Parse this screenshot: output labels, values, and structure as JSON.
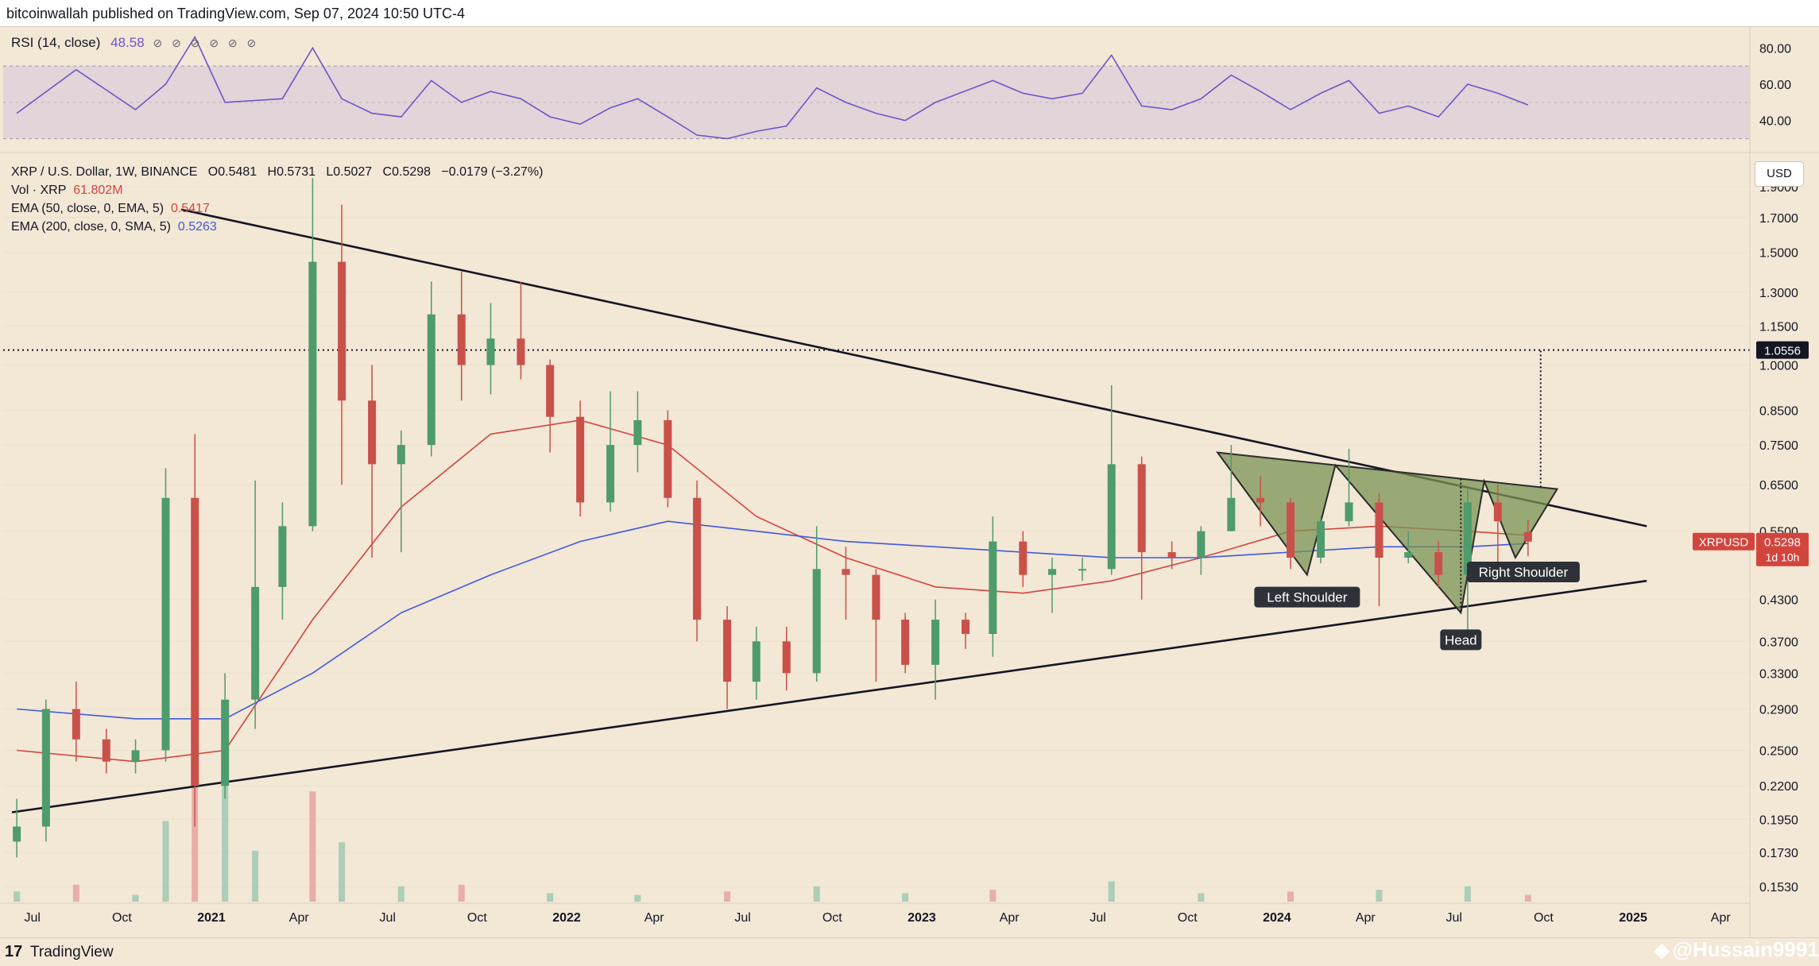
{
  "header": {
    "publisher": "bitcoinwallah published on TradingView.com, Sep 07, 2024 10:50 UTC-4"
  },
  "rsi": {
    "label": "RSI (14, close)",
    "value": "48.58",
    "icons": "⊘ ⊘ ⊘ ⊘ ⊘ ⊘",
    "scale": [
      "80.00",
      "60.00",
      "40.00"
    ]
  },
  "legend": {
    "symbol": "XRP / U.S. Dollar, 1W, BINANCE",
    "o_label": "O",
    "o": "0.5481",
    "h_label": "H",
    "h": "0.5731",
    "l_label": "L",
    "l": "0.5027",
    "c_label": "C",
    "c": "0.5298",
    "change": "−0.0179 (−3.27%)",
    "vol_label": "Vol · XRP",
    "vol": "61.802M",
    "ema50_label": "EMA (50, close, 0, EMA, 5)",
    "ema50": "0.5417",
    "ema200_label": "EMA (200, close, 0, SMA, 5)",
    "ema200": "0.5263"
  },
  "currency_button": "USD",
  "price_axis": [
    "1.9000",
    "1.7000",
    "1.5000",
    "1.3000",
    "1.1500",
    "1.0000",
    "0.8500",
    "0.7500",
    "0.6500",
    "0.5500",
    "0.4300",
    "0.3700",
    "0.3300",
    "0.2900",
    "0.2500",
    "0.2200",
    "0.1950",
    "0.1730",
    "0.1530"
  ],
  "time_axis": [
    "Jul",
    "Oct",
    "2021",
    "Apr",
    "Jul",
    "Oct",
    "2022",
    "Apr",
    "Jul",
    "Oct",
    "2023",
    "Apr",
    "Jul",
    "Oct",
    "2024",
    "Apr",
    "Jul",
    "Oct",
    "2025",
    "Apr"
  ],
  "tags": {
    "target": "1.0556",
    "symbol": "XRPUSD",
    "last": "0.5298",
    "countdown": "1d 10h"
  },
  "annotations": {
    "left_shoulder": "Left Shoulder",
    "head": "Head",
    "right_shoulder": "Right Shoulder"
  },
  "footer": {
    "logo": "17",
    "brand": "TradingView",
    "watermark": "@Hussain9991",
    "watermark_icon": "◈"
  },
  "colors": {
    "background": "#f3e7d6",
    "up_candle": "#4e9b6c",
    "down_candle": "#c9514a",
    "ema50": "#d2453d",
    "ema200": "#3f5ad8",
    "rsi_line": "#6f55c8",
    "pattern_fill": "#7a9454",
    "trendline": "#131722"
  },
  "chart_data": {
    "type": "candlestick",
    "title": "XRP / U.S. Dollar, 1W, BINANCE",
    "y_scale": "log",
    "ylim": [
      0.145,
      2.1
    ],
    "xlim": [
      "2020-06",
      "2025-05"
    ],
    "series": [
      {
        "name": "XRP / U.S. Dollar",
        "points": [
          [
            "2020-06",
            0.18,
            0.21,
            0.17,
            0.19
          ],
          [
            "2020-07",
            0.19,
            0.3,
            0.18,
            0.29
          ],
          [
            "2020-08",
            0.29,
            0.32,
            0.24,
            0.26
          ],
          [
            "2020-09",
            0.26,
            0.27,
            0.23,
            0.24
          ],
          [
            "2020-10",
            0.24,
            0.26,
            0.23,
            0.25
          ],
          [
            "2020-11",
            0.25,
            0.69,
            0.24,
            0.62
          ],
          [
            "2020-12",
            0.62,
            0.78,
            0.19,
            0.22
          ],
          [
            "2021-01",
            0.22,
            0.33,
            0.21,
            0.3
          ],
          [
            "2021-02",
            0.3,
            0.66,
            0.27,
            0.45
          ],
          [
            "2021-03",
            0.45,
            0.61,
            0.4,
            0.56
          ],
          [
            "2021-04",
            0.56,
            1.96,
            0.55,
            1.45
          ],
          [
            "2021-05",
            1.45,
            1.78,
            0.65,
            0.88
          ],
          [
            "2021-06",
            0.88,
            1.0,
            0.5,
            0.7
          ],
          [
            "2021-07",
            0.7,
            0.79,
            0.51,
            0.75
          ],
          [
            "2021-08",
            0.75,
            1.35,
            0.72,
            1.2
          ],
          [
            "2021-09",
            1.2,
            1.4,
            0.88,
            1.0
          ],
          [
            "2021-10",
            1.0,
            1.25,
            0.9,
            1.1
          ],
          [
            "2021-11",
            1.1,
            1.35,
            0.95,
            1.0
          ],
          [
            "2021-12",
            1.0,
            1.02,
            0.73,
            0.83
          ],
          [
            "2022-01",
            0.83,
            0.88,
            0.58,
            0.61
          ],
          [
            "2022-02",
            0.61,
            0.91,
            0.59,
            0.75
          ],
          [
            "2022-03",
            0.75,
            0.91,
            0.68,
            0.82
          ],
          [
            "2022-04",
            0.82,
            0.85,
            0.6,
            0.62
          ],
          [
            "2022-05",
            0.62,
            0.66,
            0.37,
            0.4
          ],
          [
            "2022-06",
            0.4,
            0.42,
            0.29,
            0.32
          ],
          [
            "2022-07",
            0.32,
            0.39,
            0.3,
            0.37
          ],
          [
            "2022-08",
            0.37,
            0.39,
            0.31,
            0.33
          ],
          [
            "2022-09",
            0.33,
            0.56,
            0.32,
            0.48
          ],
          [
            "2022-10",
            0.48,
            0.52,
            0.4,
            0.47
          ],
          [
            "2022-11",
            0.47,
            0.48,
            0.32,
            0.4
          ],
          [
            "2022-12",
            0.4,
            0.41,
            0.33,
            0.34
          ],
          [
            "2023-01",
            0.34,
            0.43,
            0.3,
            0.4
          ],
          [
            "2023-02",
            0.4,
            0.41,
            0.36,
            0.38
          ],
          [
            "2023-03",
            0.38,
            0.58,
            0.35,
            0.53
          ],
          [
            "2023-04",
            0.53,
            0.55,
            0.45,
            0.47
          ],
          [
            "2023-05",
            0.47,
            0.5,
            0.41,
            0.48
          ],
          [
            "2023-06",
            0.48,
            0.5,
            0.46,
            0.48
          ],
          [
            "2023-07",
            0.48,
            0.93,
            0.47,
            0.7
          ],
          [
            "2023-08",
            0.7,
            0.72,
            0.43,
            0.51
          ],
          [
            "2023-09",
            0.51,
            0.53,
            0.48,
            0.5
          ],
          [
            "2023-10",
            0.5,
            0.56,
            0.47,
            0.55
          ],
          [
            "2023-11",
            0.55,
            0.75,
            0.55,
            0.62
          ],
          [
            "2023-12",
            0.62,
            0.67,
            0.56,
            0.61
          ],
          [
            "2024-01",
            0.61,
            0.62,
            0.48,
            0.5
          ],
          [
            "2024-02",
            0.5,
            0.58,
            0.49,
            0.57
          ],
          [
            "2024-03",
            0.57,
            0.74,
            0.56,
            0.61
          ],
          [
            "2024-04",
            0.61,
            0.63,
            0.42,
            0.5
          ],
          [
            "2024-05",
            0.5,
            0.55,
            0.49,
            0.51
          ],
          [
            "2024-06",
            0.51,
            0.53,
            0.45,
            0.47
          ],
          [
            "2024-07",
            0.47,
            0.64,
            0.38,
            0.61
          ],
          [
            "2024-08",
            0.61,
            0.65,
            0.49,
            0.57
          ],
          [
            "2024-09",
            0.5481,
            0.5731,
            0.5027,
            0.5298
          ]
        ]
      },
      {
        "name": "EMA (50, close, 0, EMA, 5)",
        "points": [
          [
            "2020-06",
            0.25
          ],
          [
            "2020-10",
            0.24
          ],
          [
            "2021-01",
            0.25
          ],
          [
            "2021-04",
            0.4
          ],
          [
            "2021-07",
            0.6
          ],
          [
            "2021-10",
            0.78
          ],
          [
            "2022-01",
            0.82
          ],
          [
            "2022-04",
            0.75
          ],
          [
            "2022-07",
            0.58
          ],
          [
            "2022-10",
            0.5
          ],
          [
            "2023-01",
            0.45
          ],
          [
            "2023-04",
            0.44
          ],
          [
            "2023-07",
            0.46
          ],
          [
            "2023-10",
            0.5
          ],
          [
            "2024-01",
            0.55
          ],
          [
            "2024-04",
            0.56
          ],
          [
            "2024-07",
            0.55
          ],
          [
            "2024-09",
            0.5417
          ]
        ]
      },
      {
        "name": "EMA (200, close, 0, SMA, 5)",
        "points": [
          [
            "2020-06",
            0.29
          ],
          [
            "2020-10",
            0.28
          ],
          [
            "2021-01",
            0.28
          ],
          [
            "2021-04",
            0.33
          ],
          [
            "2021-07",
            0.41
          ],
          [
            "2021-10",
            0.47
          ],
          [
            "2022-01",
            0.53
          ],
          [
            "2022-04",
            0.57
          ],
          [
            "2022-07",
            0.55
          ],
          [
            "2022-10",
            0.53
          ],
          [
            "2023-01",
            0.52
          ],
          [
            "2023-04",
            0.51
          ],
          [
            "2023-07",
            0.5
          ],
          [
            "2023-10",
            0.5
          ],
          [
            "2024-01",
            0.51
          ],
          [
            "2024-04",
            0.52
          ],
          [
            "2024-07",
            0.52
          ],
          [
            "2024-09",
            0.5263
          ]
        ]
      }
    ],
    "rsi": {
      "name": "RSI (14, close)",
      "ylim": [
        25,
        88
      ],
      "bands": [
        30,
        70
      ],
      "mid": 50,
      "points": [
        [
          "2020-06",
          44
        ],
        [
          "2020-08",
          68
        ],
        [
          "2020-10",
          46
        ],
        [
          "2020-11",
          60
        ],
        [
          "2020-12",
          86
        ],
        [
          "2021-01",
          50
        ],
        [
          "2021-03",
          52
        ],
        [
          "2021-04",
          80
        ],
        [
          "2021-05",
          52
        ],
        [
          "2021-06",
          44
        ],
        [
          "2021-07",
          42
        ],
        [
          "2021-08",
          62
        ],
        [
          "2021-09",
          50
        ],
        [
          "2021-10",
          56
        ],
        [
          "2021-11",
          52
        ],
        [
          "2021-12",
          42
        ],
        [
          "2022-01",
          38
        ],
        [
          "2022-02",
          47
        ],
        [
          "2022-03",
          52
        ],
        [
          "2022-04",
          42
        ],
        [
          "2022-05",
          32
        ],
        [
          "2022-06",
          30
        ],
        [
          "2022-07",
          34
        ],
        [
          "2022-08",
          37
        ],
        [
          "2022-09",
          58
        ],
        [
          "2022-10",
          50
        ],
        [
          "2022-11",
          44
        ],
        [
          "2022-12",
          40
        ],
        [
          "2023-01",
          50
        ],
        [
          "2023-03",
          62
        ],
        [
          "2023-04",
          55
        ],
        [
          "2023-05",
          52
        ],
        [
          "2023-06",
          55
        ],
        [
          "2023-07",
          76
        ],
        [
          "2023-08",
          48
        ],
        [
          "2023-09",
          46
        ],
        [
          "2023-10",
          52
        ],
        [
          "2023-11",
          65
        ],
        [
          "2023-12",
          56
        ],
        [
          "2024-01",
          46
        ],
        [
          "2024-02",
          55
        ],
        [
          "2024-03",
          62
        ],
        [
          "2024-04",
          44
        ],
        [
          "2024-05",
          48
        ],
        [
          "2024-06",
          42
        ],
        [
          "2024-07",
          60
        ],
        [
          "2024-08",
          55
        ],
        [
          "2024-09",
          48.58
        ]
      ]
    },
    "volume": {
      "name": "Vol · XRP",
      "points": [
        [
          "2020-06",
          12
        ],
        [
          "2020-08",
          20
        ],
        [
          "2020-10",
          8
        ],
        [
          "2020-11",
          95
        ],
        [
          "2020-12",
          150
        ],
        [
          "2021-01",
          140
        ],
        [
          "2021-02",
          60
        ],
        [
          "2021-04",
          130
        ],
        [
          "2021-05",
          70
        ],
        [
          "2021-07",
          18
        ],
        [
          "2021-09",
          20
        ],
        [
          "2021-12",
          10
        ],
        [
          "2022-03",
          8
        ],
        [
          "2022-06",
          12
        ],
        [
          "2022-09",
          18
        ],
        [
          "2022-12",
          10
        ],
        [
          "2023-03",
          14
        ],
        [
          "2023-07",
          24
        ],
        [
          "2023-10",
          10
        ],
        [
          "2024-01",
          12
        ],
        [
          "2024-04",
          14
        ],
        [
          "2024-07",
          18
        ],
        [
          "2024-09",
          8
        ]
      ]
    },
    "trendlines": [
      {
        "name": "descending resistance",
        "from": [
          "2020-12-01",
          1.75
        ],
        "to": [
          "2025-01-15",
          0.56
        ]
      },
      {
        "name": "ascending support",
        "from": [
          "2020-06-10",
          0.2
        ],
        "to": [
          "2025-01-15",
          0.46
        ]
      }
    ],
    "target_level": 1.0556,
    "pattern": {
      "type": "inverse head and shoulders",
      "left_shoulder": [
        "2024-02-01",
        0.47
      ],
      "head": [
        "2024-07-08",
        0.41
      ],
      "right_shoulder": [
        "2024-09-02",
        0.5
      ],
      "neckline": [
        [
          "2023-11-01",
          0.73
        ],
        [
          "2024-10-15",
          0.64
        ]
      ]
    }
  }
}
